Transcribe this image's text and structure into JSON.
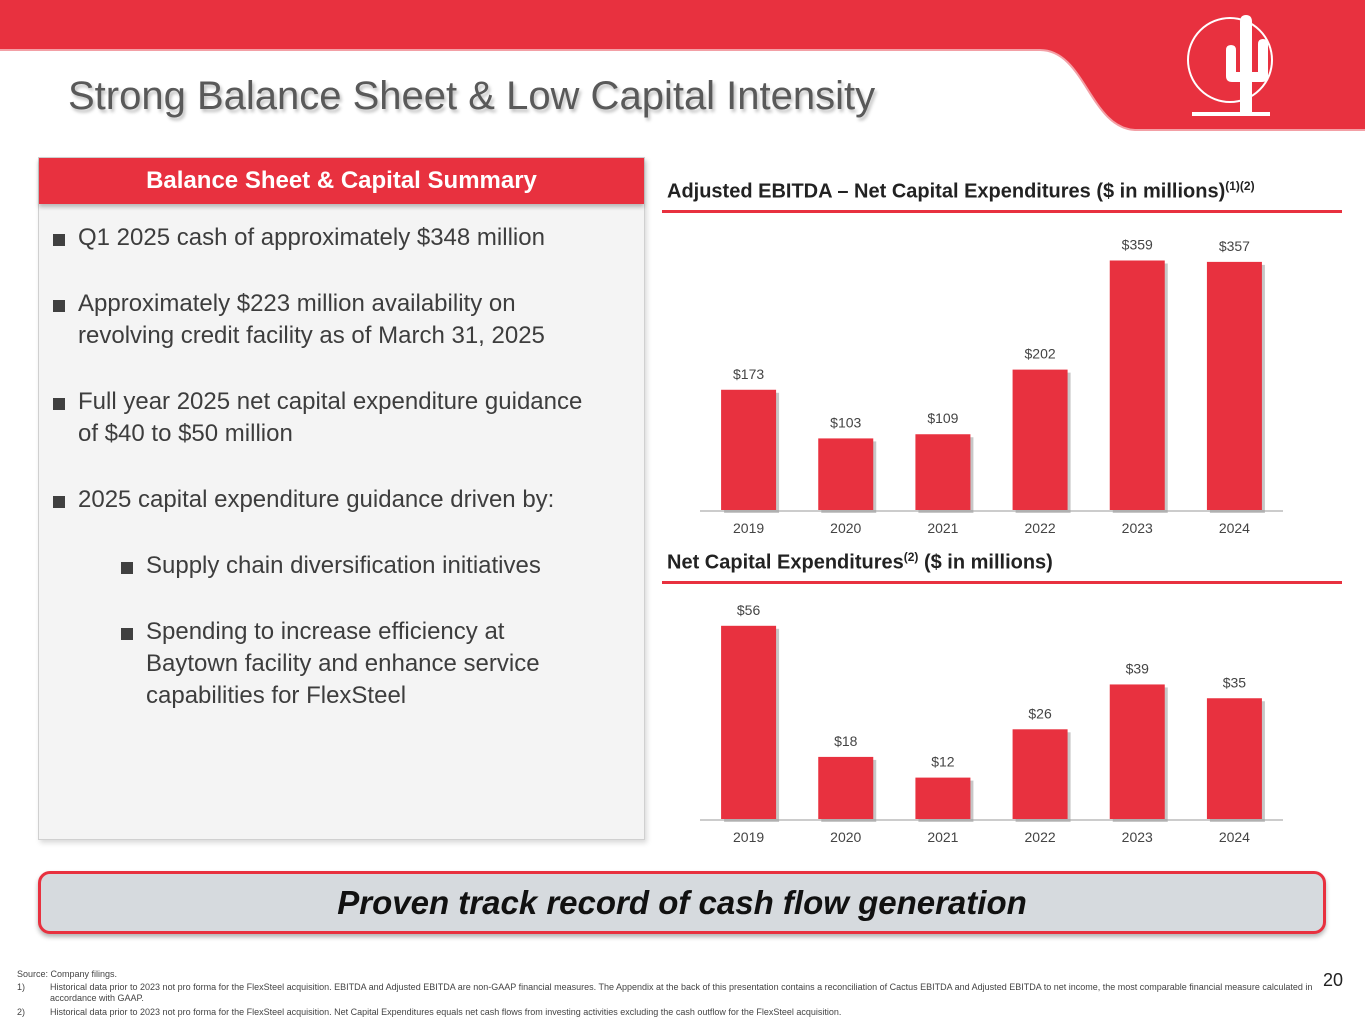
{
  "title": "Strong Balance Sheet & Low Capital Intensity",
  "accent_color": "#e8313f",
  "summary": {
    "header": "Balance Sheet & Capital Summary",
    "bullets": [
      {
        "line1": "Q1 2025 cash of approximately $348 million"
      },
      {
        "line1": "Approximately $223 million availability on",
        "line2": "revolving credit facility as of March 31, 2025"
      },
      {
        "line1": "Full year 2025 net capital expenditure guidance",
        "line2": "of $40 to $50 million"
      },
      {
        "line1": "2025 capital expenditure guidance driven by:"
      }
    ],
    "sub_bullets": [
      {
        "line1": "Supply chain diversification initiatives"
      },
      {
        "line1": "Spending to increase efficiency at",
        "line2": "Baytown facility and enhance service",
        "line3": "capabilities for FlexSteel"
      }
    ]
  },
  "chart_titles": [
    {
      "main": "Adjusted EBITDA – Net Capital Expenditures ($ in millions)",
      "sup": "(1)(2)",
      "tail": ""
    },
    {
      "main": "Net Capital Expenditures",
      "sup": "(2)",
      "tail": " ($ in millions)"
    }
  ],
  "chart_data": [
    {
      "type": "bar",
      "title": "Adjusted EBITDA – Net Capital Expenditures ($ in millions)(1)(2)",
      "categories": [
        "2019",
        "2020",
        "2021",
        "2022",
        "2023",
        "2024"
      ],
      "values": [
        173,
        103,
        109,
        202,
        359,
        357
      ],
      "labels": [
        "$173",
        "$103",
        "$109",
        "$202",
        "$359",
        "$357"
      ],
      "ylim": [
        0,
        400
      ],
      "xlabel": "",
      "ylabel": "",
      "grid": false
    },
    {
      "type": "bar",
      "title": "Net Capital Expenditures(2) ($ in millions)",
      "categories": [
        "2019",
        "2020",
        "2021",
        "2022",
        "2023",
        "2024"
      ],
      "values": [
        56,
        18,
        12,
        26,
        39,
        35
      ],
      "labels": [
        "$56",
        "$18",
        "$12",
        "$26",
        "$39",
        "$35"
      ],
      "ylim": [
        0,
        60
      ],
      "xlabel": "",
      "ylabel": "",
      "grid": false
    }
  ],
  "banner": "Proven track record of cash flow generation",
  "footnotes": {
    "source": "Source: Company filings.",
    "notes": [
      {
        "num": "1)",
        "text": "Historical data prior to 2023 not pro forma for the FlexSteel acquisition. EBITDA and Adjusted EBITDA are non-GAAP financial measures. The Appendix at the back of this presentation contains a reconciliation of Cactus EBITDA and Adjusted EBITDA to net income, the most comparable financial measure calculated in accordance with GAAP."
      },
      {
        "num": "2)",
        "text": "Historical data prior to 2023 not pro forma for the FlexSteel acquisition.  Net Capital Expenditures equals net cash flows from investing activities excluding the cash outflow for the FlexSteel acquisition."
      }
    ]
  },
  "page_number": "20"
}
